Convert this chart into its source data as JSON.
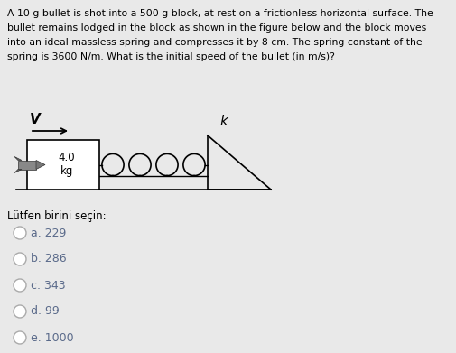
{
  "bg_color": "#e9e9e9",
  "question_text_lines": [
    "A 10 g bullet is shot into a 500 g block, at rest on a frictionless horizontal surface. The",
    "bullet remains lodged in the block as shown in the figure below and the block moves",
    "into an ideal massless spring and compresses it by 8 cm. The spring constant of the",
    "spring is 3600 N/m. What is the initial speed of the bullet (in m/s)?"
  ],
  "prompt_text": "Lütfen birini seçin:",
  "choices": [
    "a. 229",
    "b. 286",
    "c. 343",
    "d. 99",
    "e. 1000"
  ],
  "choice_color": "#5a6a8a",
  "fig_width": 5.06,
  "fig_height": 3.91,
  "fig_dpi": 100
}
